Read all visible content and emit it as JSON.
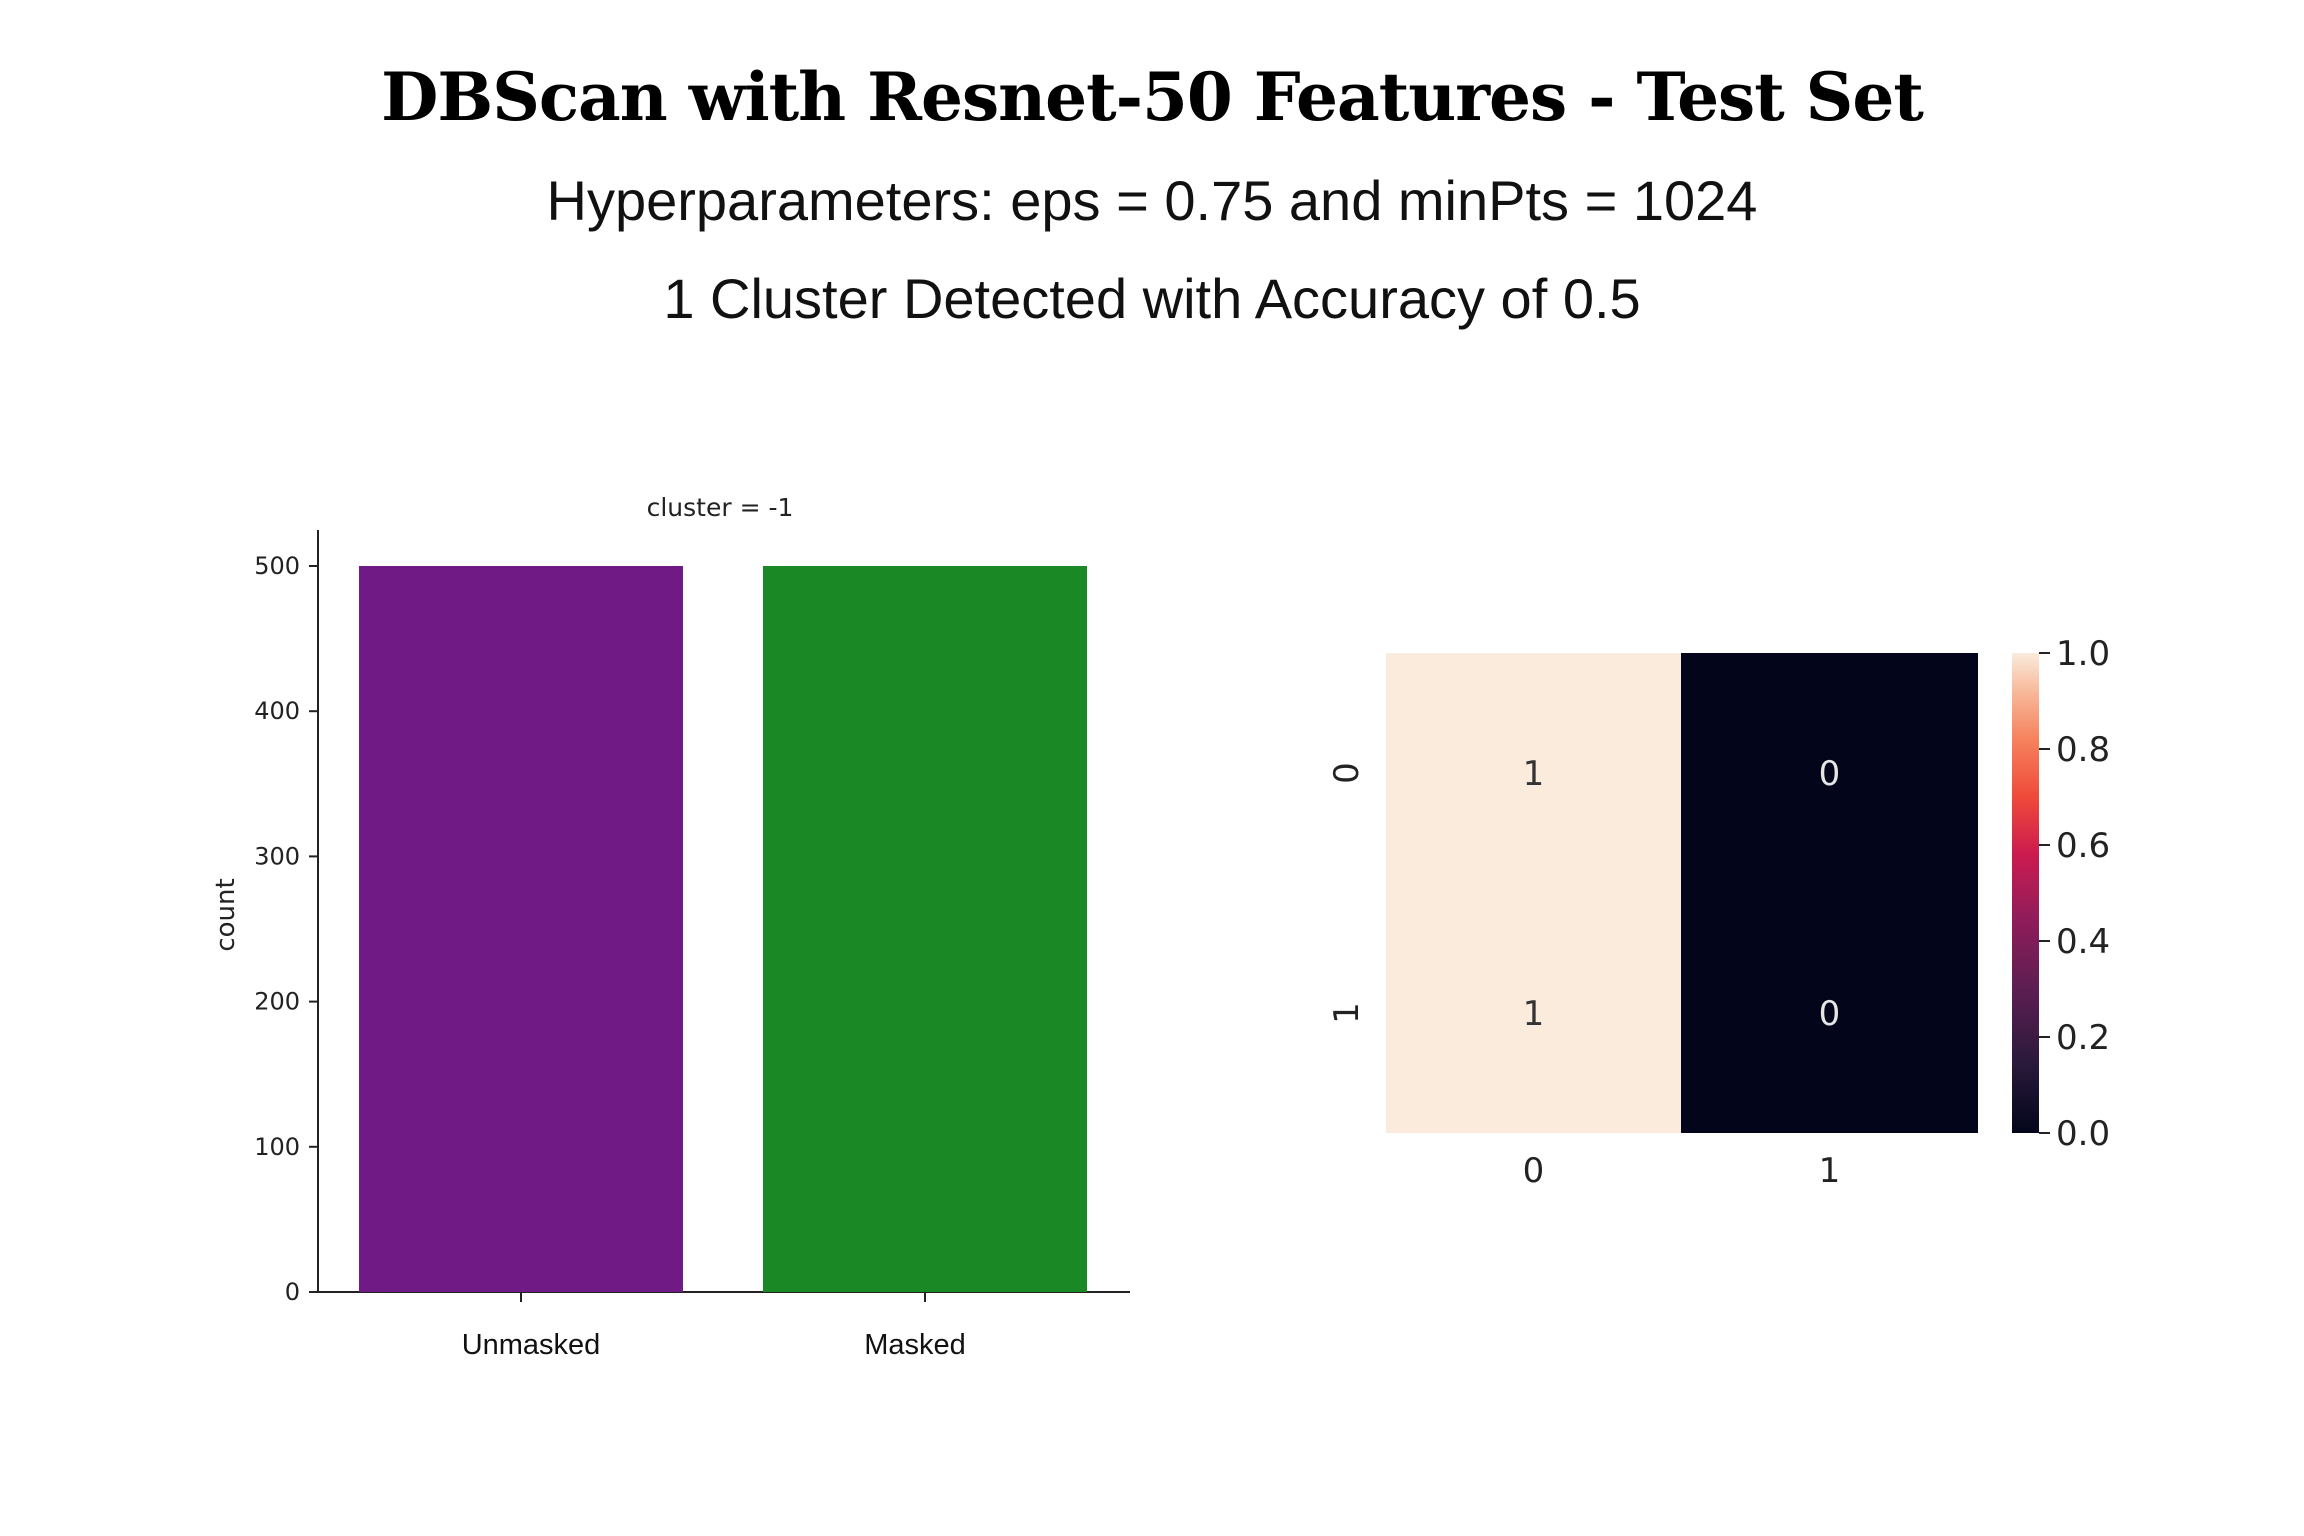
{
  "header": {
    "title": "DBScan with Resnet-50 Features  - Test Set",
    "subtitle_params": "Hyperparameters: eps = 0.75 and minPts = 1024",
    "subtitle_result": "1 Cluster Detected with Accuracy of 0.5"
  },
  "chart_data": [
    {
      "type": "bar",
      "title": "cluster = -1",
      "xlabel": "",
      "ylabel": "count",
      "categories": [
        "Unmasked",
        "Masked"
      ],
      "values": [
        500,
        500
      ],
      "colors": [
        "#6f1a85",
        "#1b8826"
      ],
      "ylim": [
        0,
        525
      ],
      "yticks": [
        0,
        100,
        200,
        300,
        400,
        500
      ]
    },
    {
      "type": "heatmap",
      "title": "",
      "x_ticks": [
        "0",
        "1"
      ],
      "y_ticks": [
        "0",
        "1"
      ],
      "values": [
        [
          1,
          0
        ],
        [
          1,
          0
        ]
      ],
      "annotations": [
        [
          "1",
          "0"
        ],
        [
          "1",
          "0"
        ]
      ],
      "colorbar": {
        "ticks": [
          "0.0",
          "0.2",
          "0.4",
          "0.6",
          "0.8",
          "1.0"
        ],
        "range": [
          0,
          1
        ],
        "colormap": "rocket",
        "low_color": "#03051a",
        "high_color": "#faebdd"
      }
    }
  ]
}
